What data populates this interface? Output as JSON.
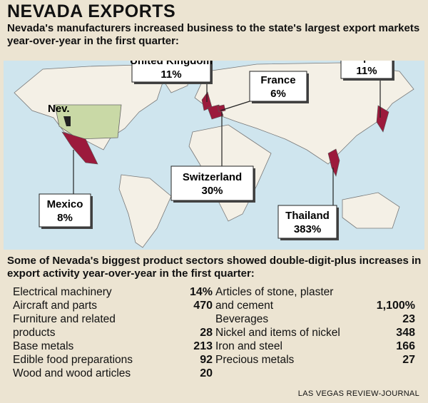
{
  "header": {
    "title": "NEVADA EXPORTS",
    "subtitle": "Nevada's manufacturers increased business to the state's largest export markets year-over-year in the first quarter:"
  },
  "map": {
    "nevada_label": "Nev.",
    "markets": [
      {
        "country": "United Kingdom",
        "change": "11%"
      },
      {
        "country": "France",
        "change": "6%"
      },
      {
        "country": "Japan",
        "change": "11%"
      },
      {
        "country": "Switzerland",
        "change": "30%"
      },
      {
        "country": "Mexico",
        "change": "8%"
      },
      {
        "country": "Thailand",
        "change": "383%"
      }
    ]
  },
  "sectors": {
    "intro": "Some of Nevada's biggest product sectors showed double-digit-plus increases in export activity year-over-year in the first quarter:",
    "left": [
      {
        "lines": [
          "Electrical machinery"
        ],
        "change": "14%"
      },
      {
        "lines": [
          "Aircraft and parts"
        ],
        "change": "470"
      },
      {
        "lines": [
          "Furniture and related",
          "products"
        ],
        "change": "28"
      },
      {
        "lines": [
          "Base metals"
        ],
        "change": "213"
      },
      {
        "lines": [
          "Edible food preparations"
        ],
        "change": "92"
      },
      {
        "lines": [
          "Wood and wood articles"
        ],
        "change": "20"
      }
    ],
    "right": [
      {
        "lines": [
          "Articles of stone, plaster",
          "and cement"
        ],
        "change": "1,100%"
      },
      {
        "lines": [
          "Beverages"
        ],
        "change": "23"
      },
      {
        "lines": [
          "Nickel and items of nickel"
        ],
        "change": "348"
      },
      {
        "lines": [
          "Iron and steel"
        ],
        "change": "166"
      },
      {
        "lines": [
          "Precious metals"
        ],
        "change": "27"
      }
    ]
  },
  "footer": {
    "credit": "LAS VEGAS REVIEW-JOURNAL"
  }
}
